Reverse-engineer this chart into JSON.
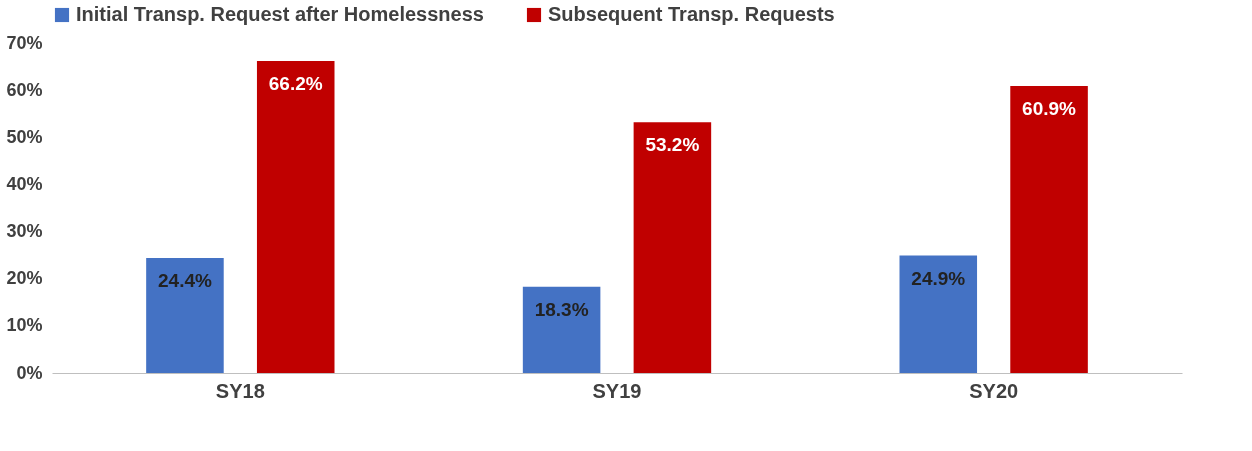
{
  "chart_data": {
    "type": "bar",
    "categories": [
      "SY18",
      "SY19",
      "SY20"
    ],
    "series": [
      {
        "name": "Initial Transp. Request after Homelessness",
        "color": "#4472c4",
        "values": [
          24.4,
          18.3,
          24.9
        ],
        "value_labels": [
          "24.4%",
          "18.3%",
          "24.9%"
        ]
      },
      {
        "name": "Subsequent Transp. Requests",
        "color": "#c00000",
        "values": [
          66.2,
          53.2,
          60.9
        ],
        "value_labels": [
          "66.2%",
          "53.2%",
          "60.9%"
        ]
      }
    ],
    "ylim": [
      0,
      70
    ],
    "yticks": [
      {
        "value": 0,
        "label": "0%"
      },
      {
        "value": 10,
        "label": "10%"
      },
      {
        "value": 20,
        "label": "20%"
      },
      {
        "value": 30,
        "label": "30%"
      },
      {
        "value": 40,
        "label": "40%"
      },
      {
        "value": 50,
        "label": "50%"
      },
      {
        "value": 60,
        "label": "60%"
      },
      {
        "value": 70,
        "label": "70%"
      }
    ],
    "grid": false,
    "legend": "top"
  }
}
